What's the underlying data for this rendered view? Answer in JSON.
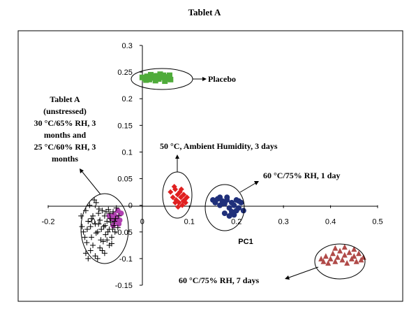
{
  "chart_data": {
    "type": "scatter",
    "title": "Tablet A",
    "xlabel": "PC1",
    "ylabel": "",
    "xlim": [
      -0.2,
      0.5
    ],
    "ylim": [
      -0.15,
      0.3
    ],
    "xticks": [
      "-0.2",
      "-0.1",
      "0",
      "0.1",
      "0.2",
      "0.3",
      "0.4",
      "0.5"
    ],
    "yticks": [
      "0.3",
      "0.25",
      "0.2",
      "0.15",
      "0.1",
      "0.05",
      "0",
      "-0.05",
      "-0.1",
      "-0.15"
    ],
    "grid": false,
    "legend": "none",
    "series": [
      {
        "marker": "square",
        "color": "#4fab3a",
        "points": [
          [
            0.0,
            0.24
          ],
          [
            0.005,
            0.238
          ],
          [
            0.01,
            0.242
          ],
          [
            0.015,
            0.236
          ],
          [
            0.02,
            0.241
          ],
          [
            0.025,
            0.239
          ],
          [
            0.03,
            0.243
          ],
          [
            0.035,
            0.237
          ],
          [
            0.04,
            0.24
          ],
          [
            0.045,
            0.244
          ],
          [
            0.05,
            0.238
          ],
          [
            0.055,
            0.241
          ],
          [
            0.06,
            0.236
          ],
          [
            0.008,
            0.235
          ],
          [
            0.018,
            0.245
          ],
          [
            0.028,
            0.234
          ],
          [
            0.038,
            0.246
          ],
          [
            0.048,
            0.233
          ],
          [
            0.058,
            0.244
          ],
          [
            0.012,
            0.239
          ]
        ]
      },
      {
        "marker": "diamond",
        "color": "#e02020",
        "points": [
          [
            0.06,
            0.025
          ],
          [
            0.065,
            0.015
          ],
          [
            0.07,
            0.03
          ],
          [
            0.072,
            0.01
          ],
          [
            0.075,
            0.02
          ],
          [
            0.078,
            0.005
          ],
          [
            0.08,
            0.025
          ],
          [
            0.082,
            0.015
          ],
          [
            0.085,
            0.0
          ],
          [
            0.088,
            0.02
          ],
          [
            0.09,
            0.01
          ],
          [
            0.092,
            0.005
          ],
          [
            0.095,
            0.015
          ],
          [
            0.068,
            0.035
          ],
          [
            0.083,
            0.03
          ],
          [
            0.076,
            -0.003
          ],
          [
            0.087,
            0.008
          ],
          [
            0.07,
            0.005
          ]
        ]
      },
      {
        "marker": "circle",
        "color": "#1f2f7a",
        "points": [
          [
            0.15,
            0.01
          ],
          [
            0.155,
            0.005
          ],
          [
            0.16,
            0.012
          ],
          [
            0.165,
            0.0
          ],
          [
            0.17,
            0.008
          ],
          [
            0.175,
            0.003
          ],
          [
            0.18,
            0.01
          ],
          [
            0.185,
            -0.005
          ],
          [
            0.19,
            0.005
          ],
          [
            0.195,
            0.0
          ],
          [
            0.2,
            0.01
          ],
          [
            0.205,
            -0.005
          ],
          [
            0.21,
            0.005
          ],
          [
            0.215,
            -0.01
          ],
          [
            0.175,
            -0.015
          ],
          [
            0.185,
            -0.02
          ],
          [
            0.195,
            -0.018
          ],
          [
            0.2,
            -0.01
          ],
          [
            0.165,
            0.015
          ],
          [
            0.18,
            0.015
          ],
          [
            0.205,
            0.008
          ],
          [
            0.19,
            -0.012
          ]
        ]
      },
      {
        "marker": "triangle",
        "color": "#b04a48",
        "points": [
          [
            0.38,
            -0.1
          ],
          [
            0.385,
            -0.105
          ],
          [
            0.39,
            -0.095
          ],
          [
            0.395,
            -0.108
          ],
          [
            0.4,
            -0.1
          ],
          [
            0.405,
            -0.09
          ],
          [
            0.41,
            -0.105
          ],
          [
            0.415,
            -0.097
          ],
          [
            0.42,
            -0.085
          ],
          [
            0.425,
            -0.102
          ],
          [
            0.43,
            -0.093
          ],
          [
            0.435,
            -0.108
          ],
          [
            0.44,
            -0.088
          ],
          [
            0.445,
            -0.1
          ],
          [
            0.45,
            -0.095
          ],
          [
            0.455,
            -0.105
          ],
          [
            0.46,
            -0.09
          ],
          [
            0.465,
            -0.102
          ],
          [
            0.47,
            -0.097
          ],
          [
            0.41,
            -0.08
          ],
          [
            0.43,
            -0.078
          ],
          [
            0.45,
            -0.082
          ]
        ]
      },
      {
        "marker": "circle",
        "color": "#b040b0",
        "points": [
          [
            -0.07,
            -0.02
          ],
          [
            -0.065,
            -0.025
          ],
          [
            -0.06,
            -0.018
          ],
          [
            -0.058,
            -0.03
          ],
          [
            -0.055,
            -0.022
          ],
          [
            -0.05,
            -0.035
          ],
          [
            -0.052,
            -0.01
          ],
          [
            -0.048,
            -0.028
          ],
          [
            -0.062,
            -0.038
          ],
          [
            -0.045,
            -0.015
          ]
        ]
      },
      {
        "marker": "plus",
        "color": "#000000",
        "points": [
          [
            -0.13,
            -0.02
          ],
          [
            -0.125,
            -0.05
          ],
          [
            -0.12,
            -0.01
          ],
          [
            -0.118,
            -0.07
          ],
          [
            -0.115,
            -0.03
          ],
          [
            -0.112,
            0.0
          ],
          [
            -0.11,
            -0.04
          ],
          [
            -0.108,
            -0.06
          ],
          [
            -0.105,
            -0.02
          ],
          [
            -0.1,
            -0.035
          ],
          [
            -0.098,
            0.005
          ],
          [
            -0.095,
            -0.05
          ],
          [
            -0.093,
            -0.015
          ],
          [
            -0.09,
            -0.028
          ],
          [
            -0.088,
            -0.065
          ],
          [
            -0.085,
            -0.01
          ],
          [
            -0.082,
            -0.04
          ],
          [
            -0.08,
            -0.02
          ],
          [
            -0.078,
            -0.055
          ],
          [
            -0.075,
            -0.03
          ],
          [
            -0.072,
            -0.008
          ],
          [
            -0.07,
            -0.045
          ],
          [
            -0.068,
            -0.025
          ],
          [
            -0.065,
            -0.06
          ],
          [
            -0.062,
            -0.012
          ],
          [
            -0.06,
            -0.038
          ],
          [
            -0.058,
            -0.05
          ],
          [
            -0.055,
            -0.005
          ],
          [
            -0.052,
            -0.042
          ],
          [
            -0.05,
            -0.02
          ],
          [
            -0.11,
            -0.085
          ],
          [
            -0.1,
            -0.095
          ],
          [
            -0.09,
            -0.08
          ],
          [
            -0.08,
            -0.09
          ],
          [
            -0.07,
            -0.075
          ],
          [
            -0.12,
            -0.09
          ],
          [
            -0.115,
            -0.1
          ],
          [
            -0.105,
            -0.075
          ],
          [
            -0.095,
            -0.1
          ],
          [
            -0.085,
            -0.085
          ],
          [
            -0.075,
            -0.065
          ],
          [
            -0.065,
            -0.072
          ],
          [
            -0.128,
            -0.04
          ],
          [
            -0.122,
            -0.06
          ],
          [
            -0.102,
            0.01
          ],
          [
            -0.092,
            -0.007
          ],
          [
            -0.087,
            -0.045
          ],
          [
            -0.077,
            -0.012
          ],
          [
            -0.067,
            -0.032
          ],
          [
            -0.057,
            -0.025
          ],
          [
            -0.108,
            -0.025
          ],
          [
            -0.098,
            -0.052
          ],
          [
            -0.083,
            -0.068
          ],
          [
            -0.073,
            -0.05
          ],
          [
            -0.063,
            -0.045
          ],
          [
            -0.117,
            -0.045
          ],
          [
            -0.093,
            -0.035
          ],
          [
            -0.079,
            -0.038
          ],
          [
            -0.069,
            -0.015
          ],
          [
            -0.059,
            -0.03
          ]
        ]
      }
    ],
    "annotations": [
      {
        "id": "placebo",
        "text": "Placebo"
      },
      {
        "id": "fifty",
        "text": "50 °C, Ambient Humidity, 3 days"
      },
      {
        "id": "sixty1",
        "text": "60 °C/75% RH, 1 day"
      },
      {
        "id": "sixty7",
        "text": "60 °C/75% RH, 7 days"
      },
      {
        "id": "tabletA",
        "lines": [
          "Tablet A",
          "(unstressed)",
          "30 °C/65% RH, 3",
          "months and",
          "25 °C/60% RH, 3",
          "months"
        ]
      }
    ]
  }
}
